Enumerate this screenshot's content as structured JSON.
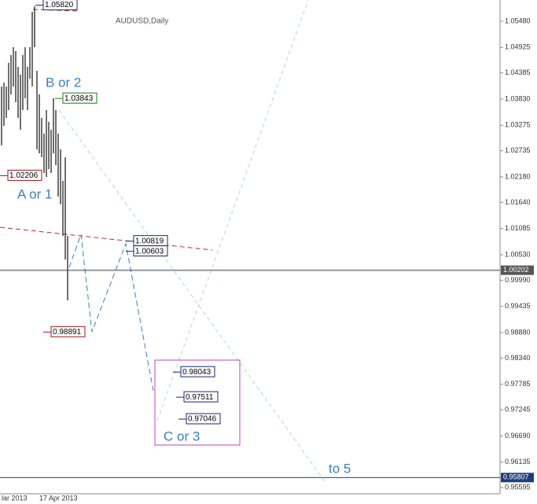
{
  "chart_data": {
    "type": "hl-bars",
    "title": "AUDUSD,Daily",
    "high": [
      1.04097,
      1.0418,
      1.04097,
      1.04597,
      1.04763,
      1.0493,
      1.04847,
      1.04513,
      1.04347,
      1.04763,
      1.0493,
      1.04513,
      1.0493,
      1.0568,
      1.05797,
      1.0443,
      1.0393,
      1.0343,
      1.03097,
      1.03597,
      1.03347,
      1.0318,
      1.03847,
      1.03597,
      1.03097,
      1.02763,
      1.02097,
      1.02597,
      1.0093
    ],
    "low": [
      1.02847,
      1.03263,
      1.0343,
      1.03597,
      1.0393,
      1.04097,
      1.03763,
      1.0343,
      1.0318,
      1.03597,
      1.03847,
      1.03597,
      1.04263,
      1.04097,
      1.0493,
      1.02763,
      1.0268,
      1.02597,
      1.02263,
      1.0218,
      1.02347,
      1.02263,
      1.0268,
      1.0243,
      1.01763,
      1.01597,
      1.0093,
      1.0043,
      0.99563
    ],
    "ylim": [
      0.95463,
      1.0593
    ],
    "yticks": [
      {
        "value": 1.0548,
        "label": "1.05480"
      },
      1.04925,
      1.04385,
      {
        "value": 1.0383,
        "label": "1.03830"
      },
      1.03275,
      1.02735,
      {
        "value": 1.0218,
        "label": "1.02180"
      },
      {
        "value": 1.0164,
        "label": "1.01640"
      },
      1.01085,
      {
        "value": 1.0053,
        "label": "1.00530"
      },
      {
        "value": 0.9999,
        "label": "0.99990"
      },
      0.99435,
      {
        "value": 0.9888,
        "label": "0.98880"
      },
      {
        "value": 0.9834,
        "label": "0.98340"
      },
      0.97785,
      0.97245,
      {
        "value": 0.9669,
        "label": "0.96690"
      },
      0.96135,
      0.95595
    ],
    "x_labels": [
      "lar 2013",
      "17 Apr 2013"
    ],
    "price_labels": [
      {
        "value": 1.0582,
        "label": "1.05820",
        "color": "#1a237e"
      },
      {
        "value": 1.03843,
        "label": "1.03843",
        "color": "#1b7a1b"
      },
      {
        "value": 1.02206,
        "label": "1.02206",
        "color": "#a31515"
      },
      {
        "value": 1.00819,
        "label": "1.00819",
        "color": "#1a237e"
      },
      {
        "value": 1.00603,
        "label": "1.00603",
        "color": "#1a237e"
      },
      {
        "value": 0.98891,
        "label": "0.98891",
        "color": "#a31515"
      },
      {
        "value": 0.98043,
        "label": "0.98043",
        "color": "#1a237e"
      },
      {
        "value": 0.97511,
        "label": "0.97511",
        "color": "#1a237e"
      },
      {
        "value": 0.97046,
        "label": "0.97046",
        "color": "#1a237e"
      }
    ],
    "current_price": {
      "value": 1.00202,
      "label": "1.00202"
    },
    "level": {
      "value": 0.95807,
      "label": "0.95807"
    },
    "wave_labels": [
      "B  or 2",
      "A or 1",
      "C  or 3",
      "to 5"
    ]
  }
}
